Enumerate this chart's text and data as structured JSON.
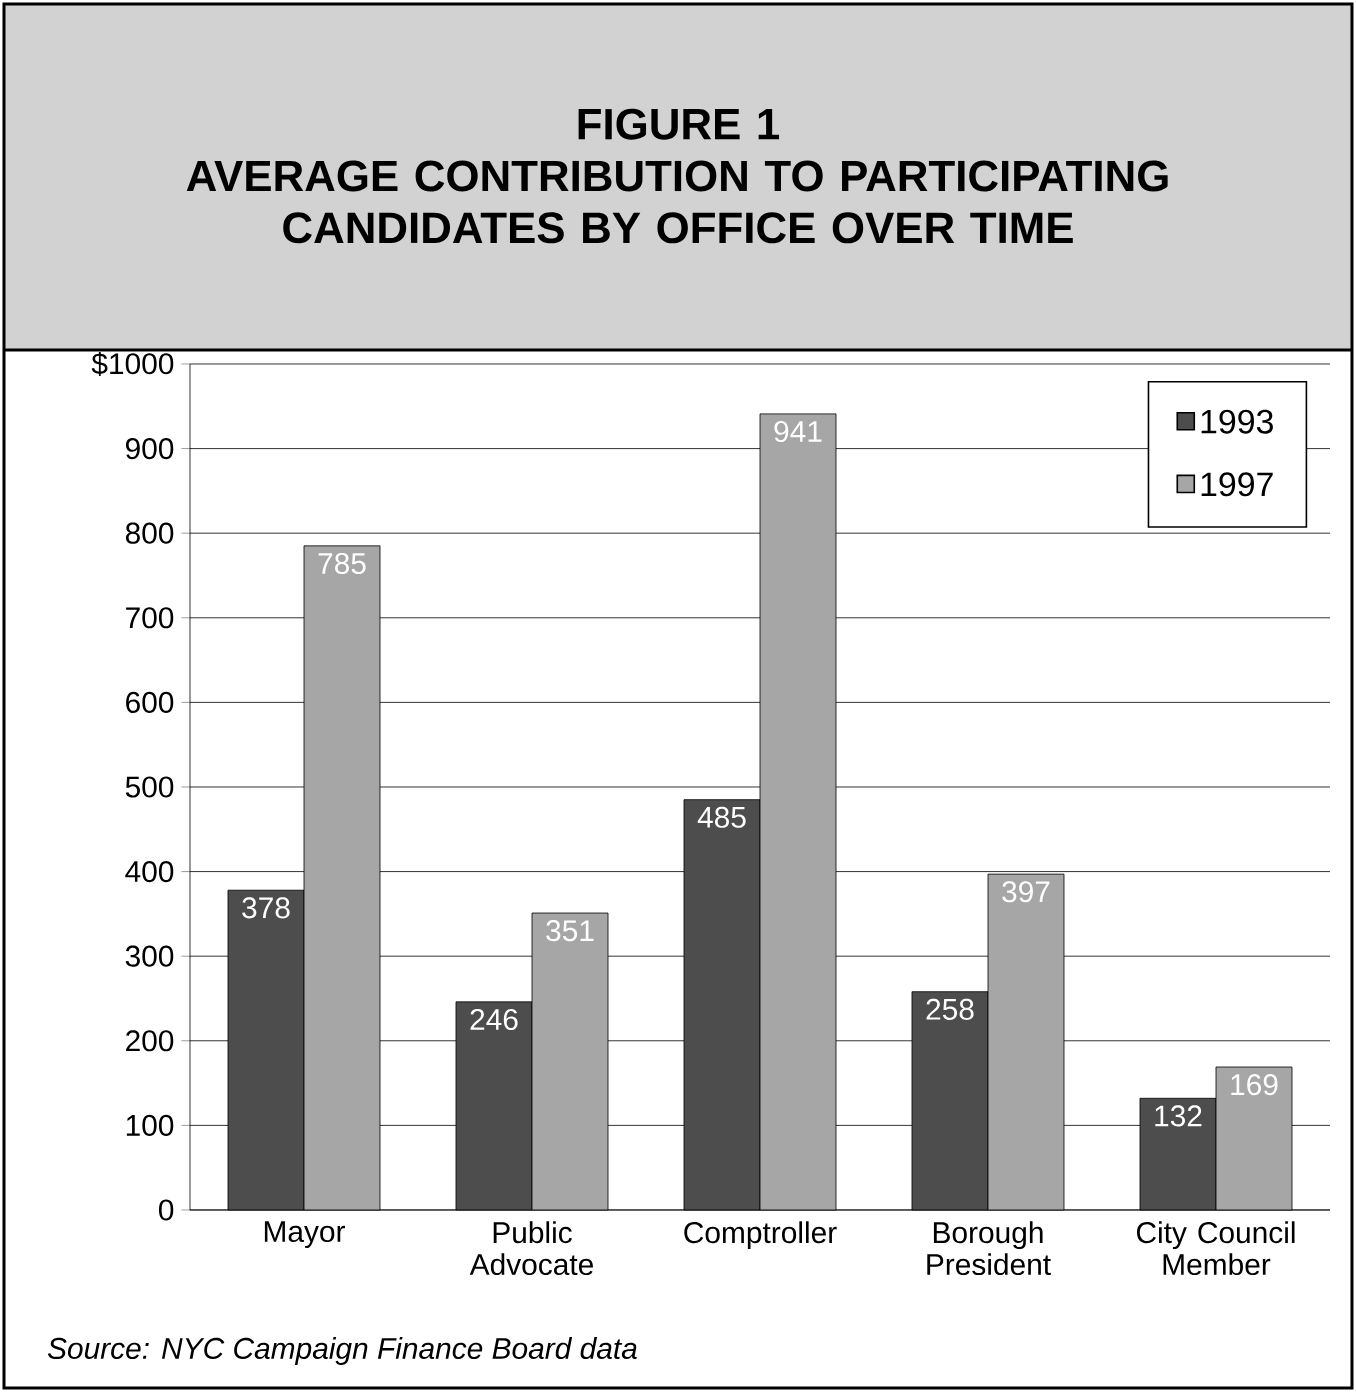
{
  "chart_data": {
    "type": "bar",
    "title": "FIGURE 1",
    "subtitle": "AVERAGE CONTRIBUTION TO PARTICIPATING CANDIDATES BY OFFICE OVER TIME",
    "categories": [
      "Mayor",
      "Public Advocate",
      "Comptroller",
      "Borough President",
      "City Council Member"
    ],
    "series": [
      {
        "name": "1993",
        "color": "#4d4d4d",
        "values": [
          378,
          246,
          485,
          258,
          132
        ]
      },
      {
        "name": "1997",
        "color": "#a6a6a6",
        "values": [
          785,
          351,
          941,
          397,
          169
        ]
      }
    ],
    "ylim": [
      0,
      1000
    ],
    "yticks": [
      0,
      100,
      200,
      300,
      400,
      500,
      600,
      700,
      800,
      900,
      {
        "value": 1000,
        "label": "$1000"
      }
    ],
    "grid": "y",
    "legend": "top right",
    "data_labels": true,
    "annotations": [
      "Source: NYC Campaign Finance Board data"
    ]
  }
}
